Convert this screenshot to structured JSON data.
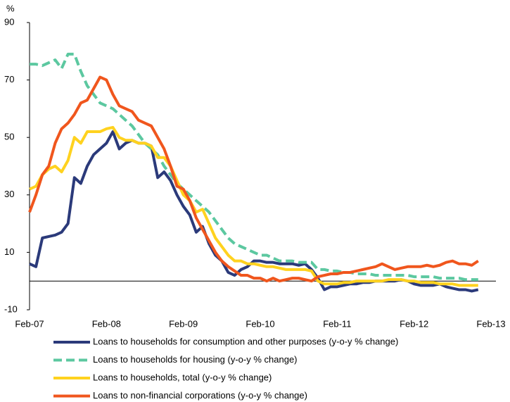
{
  "chart_data": {
    "type": "line",
    "y_label": "%",
    "categories": [
      "Feb-07",
      null,
      null,
      null,
      null,
      null,
      null,
      null,
      null,
      null,
      null,
      null,
      "Feb-08",
      null,
      null,
      null,
      null,
      null,
      null,
      null,
      null,
      null,
      null,
      null,
      "Feb-09",
      null,
      null,
      null,
      null,
      null,
      null,
      null,
      null,
      null,
      null,
      null,
      "Feb-10",
      null,
      null,
      null,
      null,
      null,
      null,
      null,
      null,
      null,
      null,
      null,
      "Feb-11",
      null,
      null,
      null,
      null,
      null,
      null,
      null,
      null,
      null,
      null,
      null,
      "Feb-12",
      null,
      null,
      null,
      null,
      null,
      null,
      null,
      null,
      null,
      null,
      null,
      "Feb-13"
    ],
    "ylim": [
      -10,
      90
    ],
    "yticks": [
      -10,
      10,
      30,
      50,
      70,
      90
    ],
    "series": [
      {
        "name": "Loans to households for consumption and other purposes (y-o-y % change)",
        "color": "#2b3a7a",
        "dashed": false,
        "values": [
          6,
          5,
          15,
          15.5,
          16,
          17,
          20,
          36,
          34,
          40,
          44,
          46,
          48,
          52,
          46,
          48,
          49,
          48,
          48,
          47,
          36,
          38,
          35,
          30,
          26,
          23,
          17,
          19,
          13,
          9,
          7,
          3,
          2,
          4,
          5,
          7,
          7,
          6.5,
          6.5,
          6,
          6,
          6,
          5.5,
          6,
          4,
          1,
          -3,
          -2,
          -2,
          -1.5,
          -1,
          -1,
          -0.5,
          -0.5,
          0,
          0,
          0,
          0,
          0.5,
          0,
          -1,
          -1.5,
          -1.5,
          -1.5,
          -1,
          -2,
          -2.5,
          -3,
          -3,
          -3.5,
          -3,
          null,
          null
        ]
      },
      {
        "name": "Loans to households for housing (y-o-y % change)",
        "color": "#5cc8a0",
        "dashed": true,
        "values": [
          75.5,
          75.5,
          75,
          76,
          77,
          74,
          79,
          79,
          73,
          68,
          65,
          62,
          61,
          60,
          58,
          56,
          54,
          51,
          48,
          46,
          44,
          40,
          37,
          34,
          32,
          30,
          28,
          26,
          24,
          21,
          18,
          15,
          13,
          12,
          11,
          10,
          9,
          9,
          8,
          7,
          7,
          7,
          6.5,
          6.5,
          6.5,
          4,
          4,
          3.5,
          3.5,
          3,
          3,
          2.5,
          2.5,
          2.5,
          2,
          2,
          2,
          2,
          2,
          2,
          1.5,
          1.5,
          1.5,
          1.5,
          1,
          1,
          1,
          1,
          0.5,
          0.5,
          0.5,
          null,
          null
        ]
      },
      {
        "name": "Loans to households, total (y-o-y % change)",
        "color": "#ffd21f",
        "dashed": false,
        "values": [
          32,
          33,
          37,
          39,
          40,
          38,
          42,
          50,
          48,
          52,
          52,
          52,
          53,
          53.5,
          50,
          49,
          49,
          48,
          48,
          47,
          43,
          43,
          40,
          35,
          30,
          28,
          24,
          25,
          20,
          15,
          12,
          9,
          7,
          7,
          6,
          6,
          5.5,
          5,
          5,
          4.5,
          4,
          4,
          4,
          4,
          3.5,
          0,
          -1,
          -1,
          -1,
          -0.5,
          -0.5,
          0,
          0,
          0,
          0,
          0,
          0.5,
          0.5,
          0.5,
          0,
          0,
          -0.5,
          -0.5,
          -0.5,
          -1,
          -1,
          -1,
          -1.5,
          -1.5,
          -1.5,
          -1.5,
          null,
          null
        ]
      },
      {
        "name": "Loans to non-financial corporations (y-o-y % change)",
        "color": "#f0561d",
        "dashed": false,
        "values": [
          24,
          30,
          37,
          40,
          48,
          53,
          55,
          58,
          62,
          63,
          67,
          71,
          70,
          65,
          61,
          60,
          59,
          56,
          55,
          54,
          50,
          46,
          40,
          33,
          32,
          28,
          22,
          18,
          14,
          10,
          7,
          5,
          3.5,
          2,
          2,
          1,
          1,
          0,
          1,
          0,
          0.5,
          1,
          1,
          0.5,
          0,
          1.5,
          2,
          2.5,
          2.5,
          3,
          3,
          3.5,
          4,
          4.5,
          5,
          6,
          5,
          4,
          4.5,
          5,
          5,
          5,
          5.5,
          5,
          5.5,
          6.5,
          7,
          6,
          6,
          5.5,
          7,
          null,
          null
        ]
      }
    ]
  }
}
